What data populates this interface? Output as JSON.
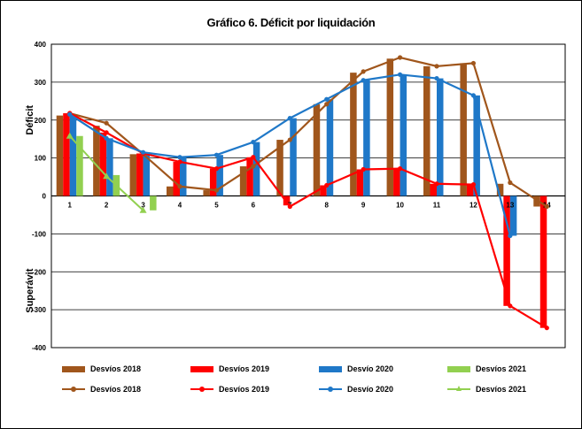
{
  "chart_data": {
    "type": "bar",
    "title": "Gráfico 6. Déficit por liquidación",
    "ylabel_top": "Déficit",
    "ylabel_bottom": "Superávit",
    "ylim": [
      -400,
      400
    ],
    "yticks": [
      -400,
      -300,
      -200,
      -100,
      0,
      100,
      200,
      300,
      400
    ],
    "categories": [
      "1",
      "2",
      "3",
      "4",
      "5",
      "6",
      "7",
      "8",
      "9",
      "10",
      "11",
      "12",
      "13",
      "14"
    ],
    "grid": true,
    "legend_position": "bottom",
    "bar_series": [
      {
        "name": "Desvíos 2018",
        "color": "#a0561c",
        "values": [
          212,
          185,
          110,
          25,
          15,
          78,
          148,
          242,
          325,
          362,
          342,
          350,
          32,
          -28
        ]
      },
      {
        "name": "Desvíos 2019",
        "color": "#ff0000",
        "values": [
          218,
          167,
          112,
          90,
          72,
          102,
          -25,
          28,
          70,
          72,
          32,
          30,
          -290,
          -348
        ]
      },
      {
        "name": "Desvío 2020",
        "color": "#1f78c8",
        "values": [
          215,
          152,
          115,
          102,
          108,
          142,
          205,
          255,
          305,
          320,
          310,
          265,
          -105,
          null
        ]
      },
      {
        "name": "Desvíos 2021",
        "color": "#92d050",
        "values": [
          158,
          55,
          -38,
          null,
          null,
          null,
          null,
          null,
          null,
          null,
          null,
          null,
          null,
          null
        ]
      }
    ],
    "line_series": [
      {
        "name": "Desvíos 2018",
        "color": "#a0561c",
        "marker": "circle",
        "values": [
          218,
          192,
          110,
          25,
          15,
          78,
          148,
          242,
          328,
          365,
          342,
          350,
          35,
          -28
        ]
      },
      {
        "name": "Desvíos 2019",
        "color": "#ff0000",
        "marker": "circle",
        "values": [
          218,
          167,
          112,
          90,
          72,
          102,
          -28,
          28,
          70,
          72,
          32,
          30,
          -290,
          -348
        ]
      },
      {
        "name": "Desvío 2020",
        "color": "#1f78c8",
        "marker": "circle",
        "values": [
          215,
          152,
          115,
          102,
          108,
          142,
          205,
          255,
          305,
          320,
          310,
          265,
          -105,
          null
        ]
      },
      {
        "name": "Desvíos 2021",
        "color": "#92d050",
        "marker": "triangle",
        "values": [
          158,
          52,
          -38,
          null,
          null,
          null,
          null,
          null,
          null,
          null,
          null,
          null,
          null,
          null
        ]
      }
    ]
  }
}
